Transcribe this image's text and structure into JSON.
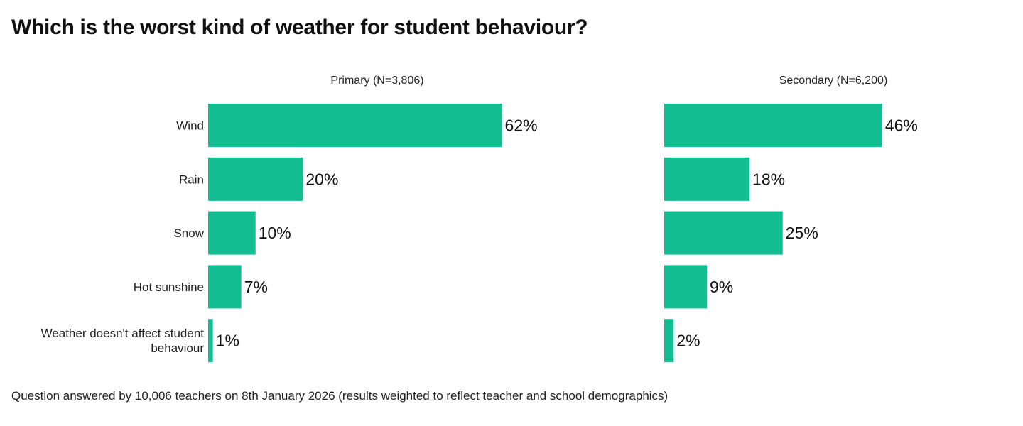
{
  "title": "Which is the worst kind of weather for student behaviour?",
  "footnote": "Question answered by 10,006 teachers on 8th January 2026 (results weighted to reflect teacher and school demographics)",
  "colors": {
    "bar": "#12be91"
  },
  "chart_data": {
    "type": "bar",
    "orientation": "horizontal",
    "categories": [
      "Wind",
      "Rain",
      "Snow",
      "Hot sunshine",
      "Weather doesn't affect student behaviour"
    ],
    "category_lines": [
      [
        "Wind"
      ],
      [
        "Rain"
      ],
      [
        "Snow"
      ],
      [
        "Hot sunshine"
      ],
      [
        "Weather doesn't affect student",
        "behaviour"
      ]
    ],
    "series": [
      {
        "name": "Primary (N=3,806)",
        "values": [
          62,
          20,
          10,
          7,
          1
        ],
        "labels": [
          "62%",
          "20%",
          "10%",
          "7%",
          "1%"
        ]
      },
      {
        "name": "Secondary (N=6,200)",
        "values": [
          46,
          18,
          25,
          9,
          2
        ],
        "labels": [
          "46%",
          "18%",
          "25%",
          "9%",
          "2%"
        ]
      }
    ],
    "value_unit": "%",
    "grid": false
  }
}
